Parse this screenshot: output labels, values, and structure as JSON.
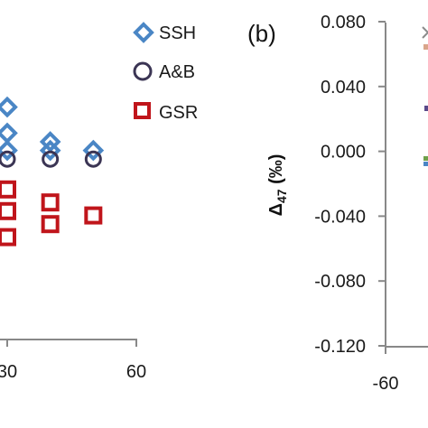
{
  "colors": {
    "ssh": "#4a86c5",
    "ab": "#3b3554",
    "gsr": "#c0151b",
    "axis": "#888888"
  },
  "panel_b_label": "(b)",
  "legend": {
    "ssh": "SSH",
    "ab": "A&B",
    "gsr": "GSR"
  },
  "chart_data": [
    {
      "type": "scatter",
      "panel": "a",
      "xlim": [
        -5,
        60
      ],
      "x_ticks": [
        "30",
        "60"
      ],
      "series": [
        {
          "name": "SSH",
          "marker": "diamond",
          "points": [
            [
              30,
              18
            ],
            [
              30,
              12
            ],
            [
              30,
              8
            ],
            [
              40,
              10
            ],
            [
              40,
              8
            ],
            [
              50,
              8
            ]
          ]
        },
        {
          "name": "A&B",
          "marker": "circle",
          "points": [
            [
              30,
              6
            ],
            [
              40,
              6
            ],
            [
              50,
              6
            ]
          ]
        },
        {
          "name": "GSR",
          "marker": "square",
          "points": [
            [
              30,
              -1
            ],
            [
              30,
              -6
            ],
            [
              30,
              -12
            ],
            [
              40,
              -4
            ],
            [
              40,
              -9
            ],
            [
              50,
              -7
            ]
          ]
        }
      ]
    },
    {
      "type": "scatter",
      "panel": "b",
      "ylabel": "Δ47 (‰)",
      "ylim": [
        -0.12,
        0.08
      ],
      "y_ticks": [
        "0.080",
        "0.040",
        "0.000",
        "-0.040",
        "-0.080",
        "-0.120"
      ],
      "x_ticks": [
        "-60"
      ],
      "series": []
    }
  ]
}
